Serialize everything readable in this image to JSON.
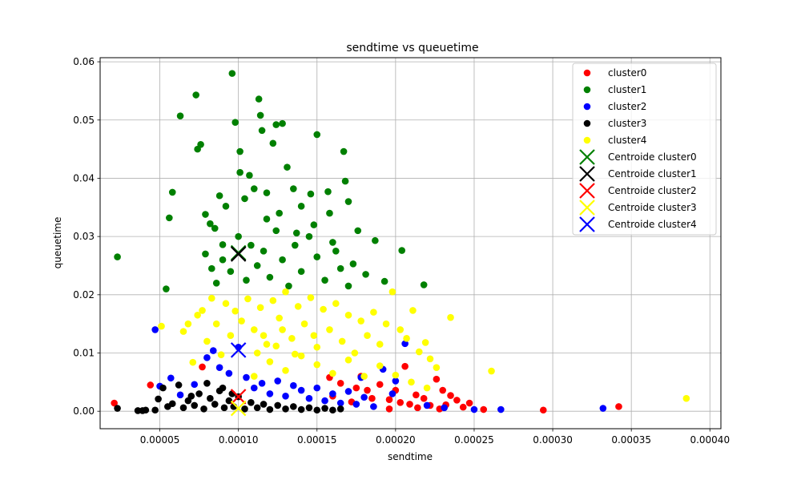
{
  "chart_data": {
    "type": "scatter",
    "title": "sendtime vs queuetime",
    "xlabel": "sendtime",
    "ylabel": "queuetime",
    "xlim": [
      1.2e-05,
      0.000407
    ],
    "ylim": [
      -0.003,
      0.0607
    ],
    "xticks": [
      5e-05,
      0.0001,
      0.00015,
      0.0002,
      0.00025,
      0.0003,
      0.00035,
      0.0004
    ],
    "xtick_labels": [
      "0.00005",
      "0.00010",
      "0.00015",
      "0.00020",
      "0.00025",
      "0.00030",
      "0.00035",
      "0.00040"
    ],
    "yticks": [
      0.0,
      0.01,
      0.02,
      0.03,
      0.04,
      0.05,
      0.06
    ],
    "ytick_labels": [
      "0.00",
      "0.01",
      "0.02",
      "0.03",
      "0.04",
      "0.05",
      "0.06"
    ],
    "grid": true,
    "legend_position": "top-right",
    "series": [
      {
        "name": "cluster0",
        "marker": "circle",
        "color": "#ff0000",
        "points": [
          [
            2.1e-05,
            0.0014
          ],
          [
            4.4e-05,
            0.0045
          ],
          [
            7.7e-05,
            0.0076
          ],
          [
            0.000158,
            0.0058
          ],
          [
            0.000165,
            0.0048
          ],
          [
            0.000175,
            0.004
          ],
          [
            0.000178,
            0.006
          ],
          [
            0.000182,
            0.0036
          ],
          [
            0.00019,
            0.0046
          ],
          [
            0.000196,
            0.002
          ],
          [
            0.0002,
            0.0036
          ],
          [
            0.000203,
            0.0015
          ],
          [
            0.000206,
            0.0077
          ],
          [
            0.000209,
            0.0012
          ],
          [
            0.000213,
            0.0028
          ],
          [
            0.000218,
            0.0022
          ],
          [
            0.000222,
            0.001
          ],
          [
            0.000226,
            0.0055
          ],
          [
            0.00023,
            0.0036
          ],
          [
            0.000232,
            0.0011
          ],
          [
            0.000235,
            0.0027
          ],
          [
            0.000239,
            0.0019
          ],
          [
            0.000243,
            0.0007
          ],
          [
            0.000247,
            0.0014
          ],
          [
            0.000256,
            0.0003
          ],
          [
            0.000294,
            0.0002
          ],
          [
            0.000342,
            0.0008
          ],
          [
            0.000196,
            0.0004
          ],
          [
            0.000185,
            0.0022
          ],
          [
            0.000172,
            0.0016
          ],
          [
            0.00016,
            0.0026
          ],
          [
            0.000214,
            0.0006
          ],
          [
            0.000228,
            0.0004
          ]
        ]
      },
      {
        "name": "cluster1",
        "marker": "circle",
        "color": "#008000",
        "points": [
          [
            2.3e-05,
            0.0265
          ],
          [
            5.4e-05,
            0.021
          ],
          [
            5.6e-05,
            0.0332
          ],
          [
            5.8e-05,
            0.0376
          ],
          [
            6.3e-05,
            0.0507
          ],
          [
            7.3e-05,
            0.0543
          ],
          [
            7.4e-05,
            0.045
          ],
          [
            7.6e-05,
            0.0458
          ],
          [
            7.9e-05,
            0.0338
          ],
          [
            8.2e-05,
            0.0322
          ],
          [
            8.5e-05,
            0.0314
          ],
          [
            8.8e-05,
            0.037
          ],
          [
            9e-05,
            0.0286
          ],
          [
            9.2e-05,
            0.0352
          ],
          [
            9.6e-05,
            0.058
          ],
          [
            9.8e-05,
            0.0496
          ],
          [
            0.000101,
            0.0446
          ],
          [
            0.000101,
            0.041
          ],
          [
            0.000104,
            0.0365
          ],
          [
            0.000107,
            0.0405
          ],
          [
            0.00011,
            0.0382
          ],
          [
            0.000113,
            0.0536
          ],
          [
            0.000114,
            0.0508
          ],
          [
            0.000115,
            0.0482
          ],
          [
            0.000118,
            0.0375
          ],
          [
            0.000122,
            0.046
          ],
          [
            0.000124,
            0.0492
          ],
          [
            0.000128,
            0.0494
          ],
          [
            0.000131,
            0.0419
          ],
          [
            0.000135,
            0.0382
          ],
          [
            0.000137,
            0.0306
          ],
          [
            0.00014,
            0.0352
          ],
          [
            0.000146,
            0.0373
          ],
          [
            0.00015,
            0.0475
          ],
          [
            0.000157,
            0.0377
          ],
          [
            0.000158,
            0.034
          ],
          [
            0.000167,
            0.0446
          ],
          [
            0.000168,
            0.0395
          ],
          [
            0.00017,
            0.036
          ],
          [
            0.000173,
            0.0253
          ],
          [
            0.000176,
            0.031
          ],
          [
            0.000181,
            0.0235
          ],
          [
            0.000187,
            0.0293
          ],
          [
            0.000193,
            0.0223
          ],
          [
            0.000204,
            0.0276
          ],
          [
            0.000218,
            0.0217
          ],
          [
            8.6e-05,
            0.022
          ],
          [
            9e-05,
            0.026
          ],
          [
            9.5e-05,
            0.024
          ],
          [
            0.0001,
            0.03
          ],
          [
            0.000105,
            0.0225
          ],
          [
            0.000108,
            0.0285
          ],
          [
            0.000112,
            0.025
          ],
          [
            0.000116,
            0.0275
          ],
          [
            0.00012,
            0.023
          ],
          [
            0.000124,
            0.031
          ],
          [
            0.000128,
            0.026
          ],
          [
            0.000132,
            0.0215
          ],
          [
            0.000136,
            0.0285
          ],
          [
            0.00014,
            0.024
          ],
          [
            0.000145,
            0.03
          ],
          [
            0.00015,
            0.0265
          ],
          [
            0.000155,
            0.0225
          ],
          [
            0.00016,
            0.029
          ],
          [
            0.000165,
            0.0245
          ],
          [
            0.00017,
            0.0215
          ],
          [
            7.9e-05,
            0.027
          ],
          [
            8.3e-05,
            0.0245
          ],
          [
            0.000118,
            0.033
          ],
          [
            0.000126,
            0.034
          ],
          [
            0.000148,
            0.032
          ],
          [
            0.000162,
            0.0275
          ]
        ]
      },
      {
        "name": "cluster2",
        "marker": "circle",
        "color": "#0000ff",
        "points": [
          [
            4.7e-05,
            0.014
          ],
          [
            5e-05,
            0.0043
          ],
          [
            5.7e-05,
            0.0057
          ],
          [
            6.3e-05,
            0.0028
          ],
          [
            7.2e-05,
            0.0046
          ],
          [
            8e-05,
            0.0092
          ],
          [
            8.4e-05,
            0.0104
          ],
          [
            8.8e-05,
            0.0075
          ],
          [
            9.4e-05,
            0.0065
          ],
          [
            0.0001,
            0.011
          ],
          [
            0.000105,
            0.0058
          ],
          [
            0.00011,
            0.004
          ],
          [
            0.000115,
            0.0048
          ],
          [
            0.00012,
            0.003
          ],
          [
            0.000125,
            0.0052
          ],
          [
            0.00013,
            0.0026
          ],
          [
            0.000135,
            0.0044
          ],
          [
            0.00014,
            0.0036
          ],
          [
            0.000145,
            0.0022
          ],
          [
            0.00015,
            0.004
          ],
          [
            0.000155,
            0.0018
          ],
          [
            0.00016,
            0.003
          ],
          [
            0.000165,
            0.0014
          ],
          [
            0.00017,
            0.0034
          ],
          [
            0.000175,
            0.0012
          ],
          [
            0.00018,
            0.0024
          ],
          [
            0.000186,
            0.0008
          ],
          [
            0.000192,
            0.0072
          ],
          [
            0.0002,
            0.0052
          ],
          [
            0.000206,
            0.0116
          ],
          [
            0.00022,
            0.001
          ],
          [
            0.000231,
            0.0006
          ],
          [
            0.00025,
            0.0003
          ],
          [
            0.000267,
            0.0003
          ],
          [
            0.000332,
            0.0005
          ],
          [
            0.000198,
            0.003
          ],
          [
            0.000178,
            0.0058
          ]
        ]
      },
      {
        "name": "cluster3",
        "marker": "circle",
        "color": "#000000",
        "points": [
          [
            2.3e-05,
            0.0005
          ],
          [
            3.6e-05,
            0.0001
          ],
          [
            3.9e-05,
            0.0001
          ],
          [
            4.1e-05,
            0.0002
          ],
          [
            4.7e-05,
            0.0002
          ],
          [
            4.9e-05,
            0.0021
          ],
          [
            5.2e-05,
            0.004
          ],
          [
            5.5e-05,
            0.0008
          ],
          [
            5.8e-05,
            0.0013
          ],
          [
            6.2e-05,
            0.0045
          ],
          [
            6.5e-05,
            0.0006
          ],
          [
            6.8e-05,
            0.0018
          ],
          [
            7.2e-05,
            0.001
          ],
          [
            7.5e-05,
            0.003
          ],
          [
            7.8e-05,
            0.0004
          ],
          [
            8.2e-05,
            0.0022
          ],
          [
            8.5e-05,
            0.0012
          ],
          [
            8.8e-05,
            0.0035
          ],
          [
            9.1e-05,
            0.0006
          ],
          [
            9.4e-05,
            0.0018
          ],
          [
            9.7e-05,
            0.0008
          ],
          [
            0.0001,
            0.0025
          ],
          [
            0.000104,
            0.0004
          ],
          [
            0.000108,
            0.0015
          ],
          [
            0.000112,
            0.0006
          ],
          [
            0.000116,
            0.0012
          ],
          [
            0.00012,
            0.0003
          ],
          [
            0.000125,
            0.001
          ],
          [
            0.00013,
            0.0004
          ],
          [
            0.000135,
            0.0008
          ],
          [
            0.00014,
            0.0003
          ],
          [
            0.000145,
            0.0006
          ],
          [
            0.00015,
            0.0002
          ],
          [
            0.000155,
            0.0005
          ],
          [
            0.00016,
            0.0002
          ],
          [
            0.000165,
            0.0004
          ],
          [
            8e-05,
            0.0048
          ],
          [
            9e-05,
            0.004
          ],
          [
            7e-05,
            0.0026
          ],
          [
            9.6e-05,
            0.003
          ]
        ]
      },
      {
        "name": "cluster4",
        "marker": "circle",
        "color": "#ffff00",
        "points": [
          [
            5.1e-05,
            0.0146
          ],
          [
            6.5e-05,
            0.0137
          ],
          [
            6.8e-05,
            0.015
          ],
          [
            7.1e-05,
            0.0084
          ],
          [
            7.4e-05,
            0.0165
          ],
          [
            7.7e-05,
            0.0173
          ],
          [
            8e-05,
            0.012
          ],
          [
            8.3e-05,
            0.0194
          ],
          [
            8.6e-05,
            0.015
          ],
          [
            8.9e-05,
            0.0097
          ],
          [
            9.2e-05,
            0.0185
          ],
          [
            9.5e-05,
            0.013
          ],
          [
            9.8e-05,
            0.0172
          ],
          [
            0.000102,
            0.0155
          ],
          [
            0.000106,
            0.0193
          ],
          [
            0.00011,
            0.014
          ],
          [
            0.000114,
            0.0178
          ],
          [
            0.000118,
            0.0115
          ],
          [
            0.000122,
            0.019
          ],
          [
            0.000126,
            0.016
          ],
          [
            0.00013,
            0.0205
          ],
          [
            0.000134,
            0.0125
          ],
          [
            0.000138,
            0.018
          ],
          [
            0.000142,
            0.015
          ],
          [
            0.000146,
            0.0195
          ],
          [
            0.00015,
            0.011
          ],
          [
            0.000154,
            0.0175
          ],
          [
            0.000158,
            0.014
          ],
          [
            0.000162,
            0.0185
          ],
          [
            0.000166,
            0.012
          ],
          [
            0.00017,
            0.0165
          ],
          [
            0.000174,
            0.01
          ],
          [
            0.000178,
            0.0155
          ],
          [
            0.000182,
            0.013
          ],
          [
            0.000186,
            0.017
          ],
          [
            0.00019,
            0.0115
          ],
          [
            0.000194,
            0.015
          ],
          [
            0.000198,
            0.0205
          ],
          [
            0.000203,
            0.014
          ],
          [
            0.000207,
            0.0125
          ],
          [
            0.000211,
            0.0173
          ],
          [
            0.000215,
            0.0102
          ],
          [
            0.000219,
            0.0118
          ],
          [
            0.000222,
            0.009
          ],
          [
            0.000226,
            0.0075
          ],
          [
            0.000235,
            0.0161
          ],
          [
            0.000261,
            0.0069
          ],
          [
            0.000385,
            0.0022
          ],
          [
            0.00011,
            0.006
          ],
          [
            0.00012,
            0.0085
          ],
          [
            0.00013,
            0.007
          ],
          [
            0.00014,
            0.0095
          ],
          [
            0.00015,
            0.008
          ],
          [
            0.00016,
            0.0065
          ],
          [
            0.00017,
            0.0088
          ],
          [
            0.00018,
            0.006
          ],
          [
            0.00019,
            0.0078
          ],
          [
            0.0002,
            0.0062
          ],
          [
            0.00021,
            0.005
          ],
          [
            0.00022,
            0.004
          ],
          [
            0.000112,
            0.01
          ],
          [
            0.000124,
            0.0112
          ],
          [
            0.000136,
            0.0098
          ],
          [
            0.000148,
            0.013
          ],
          [
            0.000128,
            0.014
          ],
          [
            0.000116,
            0.013
          ]
        ]
      }
    ],
    "centroids": [
      {
        "name": "Centroide cluster0",
        "marker": "x",
        "color": "#008000",
        "x": 0.0001,
        "y": 0.0272
      },
      {
        "name": "Centroide cluster1",
        "marker": "x",
        "color": "#000000",
        "x": 0.0001,
        "y": 0.027
      },
      {
        "name": "Centroide cluster2",
        "marker": "x",
        "color": "#ff0000",
        "x": 0.0001,
        "y": 0.0025
      },
      {
        "name": "Centroide cluster3",
        "marker": "x",
        "color": "#ffff00",
        "x": 0.0001,
        "y": 0.0005
      },
      {
        "name": "Centroide cluster4",
        "marker": "x",
        "color": "#0000ff",
        "x": 0.0001,
        "y": 0.0105
      }
    ]
  }
}
